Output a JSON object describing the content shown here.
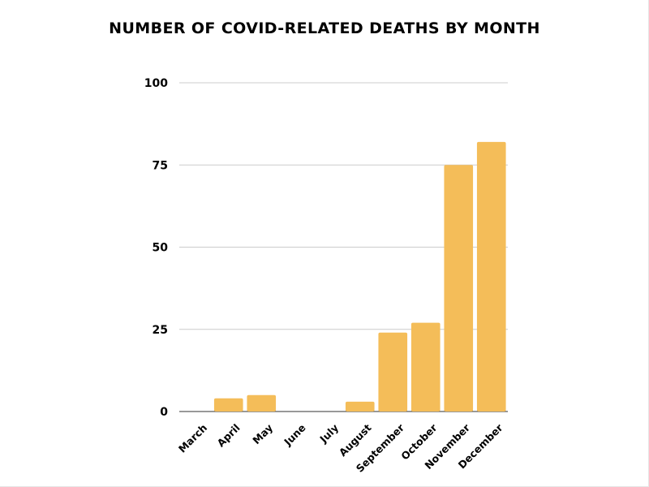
{
  "chart_data": {
    "type": "bar",
    "title": "NUMBER OF COVID-RELATED DEATHS BY MONTH",
    "xlabel": "",
    "ylabel": "",
    "categories": [
      "March",
      "April",
      "May",
      "June",
      "July",
      "August",
      "September",
      "October",
      "November",
      "December"
    ],
    "values": [
      0,
      4,
      5,
      0,
      0,
      3,
      24,
      27,
      75,
      82
    ],
    "ylim": [
      0,
      100
    ],
    "yticks": [
      0,
      25,
      50,
      75,
      100
    ],
    "grid": true,
    "legend": "none",
    "bar_color": "#F4BD59"
  }
}
